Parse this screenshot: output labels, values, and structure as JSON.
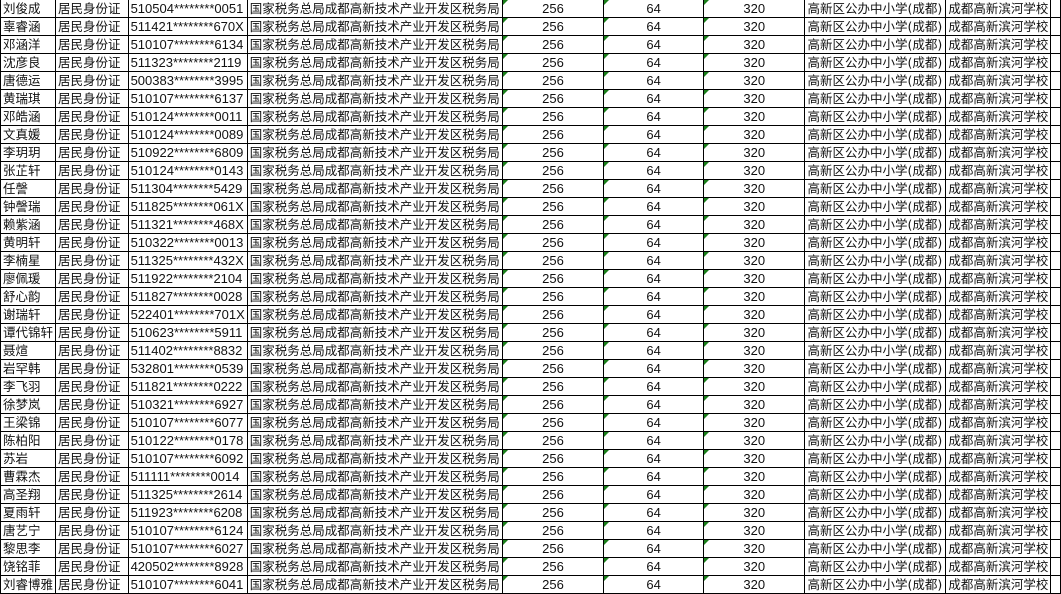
{
  "columns_fixed": {
    "id_type": "居民身份证",
    "tax_bureau": "国家税务总局成都高新技术产业开发区税务局",
    "v1": "256",
    "v2": "64",
    "v3": "320",
    "district": "高新区公办中小学(成都)",
    "school": "成都高新滨河学校"
  },
  "rows": [
    {
      "name": "刘俊成",
      "id": "510504********0051"
    },
    {
      "name": "辜睿涵",
      "id": "511421********670X"
    },
    {
      "name": "邓涵洋",
      "id": "510107********6134"
    },
    {
      "name": "沈彦良",
      "id": "511323********2119"
    },
    {
      "name": "唐德运",
      "id": "500383********3995"
    },
    {
      "name": "黄瑞琪",
      "id": "510107********6137"
    },
    {
      "name": "邓皓涵",
      "id": "510124********0011"
    },
    {
      "name": "文真媛",
      "id": "510124********0089"
    },
    {
      "name": "李玥玥",
      "id": "510922********6809"
    },
    {
      "name": "张芷轩",
      "id": "510124********0143"
    },
    {
      "name": "任謦",
      "id": "511304********5429"
    },
    {
      "name": "钟謦瑞",
      "id": "511825********061X"
    },
    {
      "name": "赖紫涵",
      "id": "511321********468X"
    },
    {
      "name": "黄明轩",
      "id": "510322********0013"
    },
    {
      "name": "李楠星",
      "id": "511325********432X"
    },
    {
      "name": "廖佩瑗",
      "id": "511922********2104"
    },
    {
      "name": "舒心韵",
      "id": "511827********0028"
    },
    {
      "name": "谢瑞轩",
      "id": "522401********701X"
    },
    {
      "name": "谭代锦轩",
      "id": "510623********5911"
    },
    {
      "name": "聂煊",
      "id": "511402********8832"
    },
    {
      "name": "岩罕韩",
      "id": "532801********0539"
    },
    {
      "name": "李飞羽",
      "id": "511821********0222"
    },
    {
      "name": "徐梦岚",
      "id": "510321********6927"
    },
    {
      "name": "王梁锦",
      "id": "510107********6077"
    },
    {
      "name": "陈柏阳",
      "id": "510122********0178"
    },
    {
      "name": "苏岩",
      "id": "510107********6092"
    },
    {
      "name": "曹霖杰",
      "id": "511111********0014"
    },
    {
      "name": "高圣翔",
      "id": "511325********2614"
    },
    {
      "name": "夏雨轩",
      "id": "511923********6208"
    },
    {
      "name": "唐艺宁",
      "id": "510107********6124"
    },
    {
      "name": "黎思李",
      "id": "510107********6027"
    },
    {
      "name": "饶铭菲",
      "id": "420502********8928"
    },
    {
      "name": "刘睿博雅",
      "id": "510107********6041"
    }
  ],
  "colors": {
    "grid": "#000000",
    "number_marker": "#1a7f1a"
  }
}
